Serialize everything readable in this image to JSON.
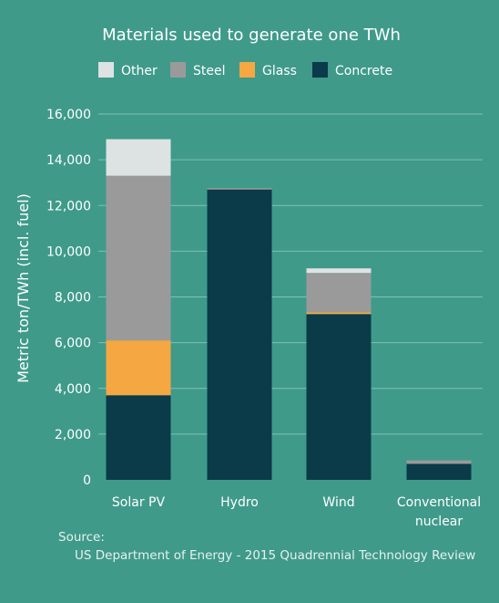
{
  "chart_data": {
    "type": "bar",
    "stacked": true,
    "title": "Materials used to generate one TWh",
    "ylabel": "Metric ton/TWh (incl. fuel)",
    "ylim": [
      0,
      16000
    ],
    "yticks": [
      0,
      2000,
      4000,
      6000,
      8000,
      10000,
      12000,
      14000,
      16000
    ],
    "ytick_labels": [
      "0",
      "2,000",
      "4,000",
      "6,000",
      "8,000",
      "10,000",
      "12,000",
      "14,000",
      "16,000"
    ],
    "grid": true,
    "legend_position": "top",
    "categories": [
      [
        "Solar PV"
      ],
      [
        "Hydro"
      ],
      [
        "Wind"
      ],
      [
        "Conventional",
        "nuclear"
      ]
    ],
    "series": [
      {
        "name": "Concrete",
        "color": "#0b3a48",
        "values": [
          3700,
          12700,
          7250,
          700
        ]
      },
      {
        "name": "Glass",
        "color": "#f5a742",
        "values": [
          2400,
          0,
          80,
          0
        ]
      },
      {
        "name": "Steel",
        "color": "#9a9a9a",
        "values": [
          7200,
          60,
          1720,
          150
        ]
      },
      {
        "name": "Other",
        "color": "#dce3e2",
        "values": [
          1600,
          0,
          200,
          0
        ]
      }
    ],
    "legend_order": [
      "Other",
      "Steel",
      "Glass",
      "Concrete"
    ]
  },
  "source": {
    "label": "Source:",
    "text": "US Department of Energy - 2015 Quadrennial Technology Review"
  }
}
